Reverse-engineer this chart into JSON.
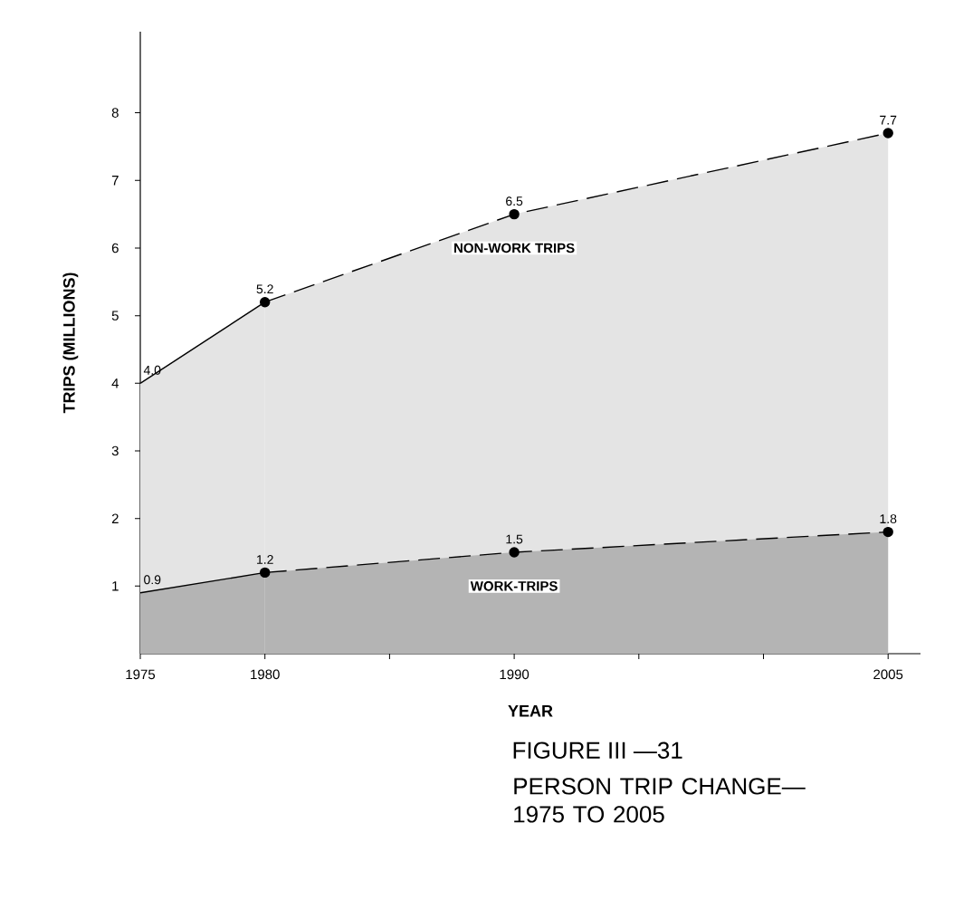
{
  "chart_data": {
    "type": "area",
    "title": "FIGURE III —31",
    "subtitle": "PERSON TRIP CHANGE— 1975 TO 2005",
    "xlabel": "YEAR",
    "ylabel": "TRIPS (MILLIONS)",
    "xlim": [
      1975,
      2006.3
    ],
    "ylim": [
      0,
      9.2
    ],
    "xticks": [
      1975,
      1980,
      {
        "value": 1985,
        "label": null
      },
      1990,
      {
        "value": 1995,
        "label": null
      },
      {
        "value": 2000,
        "label": null
      },
      2005
    ],
    "yticks": [
      1,
      2,
      3,
      4,
      5,
      6,
      7,
      8
    ],
    "series": [
      {
        "color": "#e4e4e4",
        "x": [
          1975,
          1980
        ],
        "values": [
          4.0,
          5.2
        ],
        "value_labels": [
          "4.0",
          null
        ],
        "line_style": "solid"
      },
      {
        "name": "NON-WORK TRIPS",
        "color": "#e4e4e4",
        "x": [
          1980,
          1990,
          2005
        ],
        "values": [
          5.2,
          6.5,
          7.7
        ],
        "value_labels": [
          "5.2",
          "6.5",
          "7.7"
        ],
        "line_style": "dashed",
        "marker": "circle"
      },
      {
        "color": "#b4b4b4",
        "x": [
          1975,
          1980
        ],
        "values": [
          0.9,
          1.2
        ],
        "value_labels": [
          "0.9",
          null
        ],
        "line_style": "solid"
      },
      {
        "name": "WORK-TRIPS",
        "color": "#b4b4b4",
        "x": [
          1980,
          1990,
          2005
        ],
        "values": [
          1.2,
          1.5,
          1.8
        ],
        "value_labels": [
          "1.2",
          "1.5",
          "1.8"
        ],
        "line_style": "dashed",
        "marker": "circle"
      }
    ]
  }
}
